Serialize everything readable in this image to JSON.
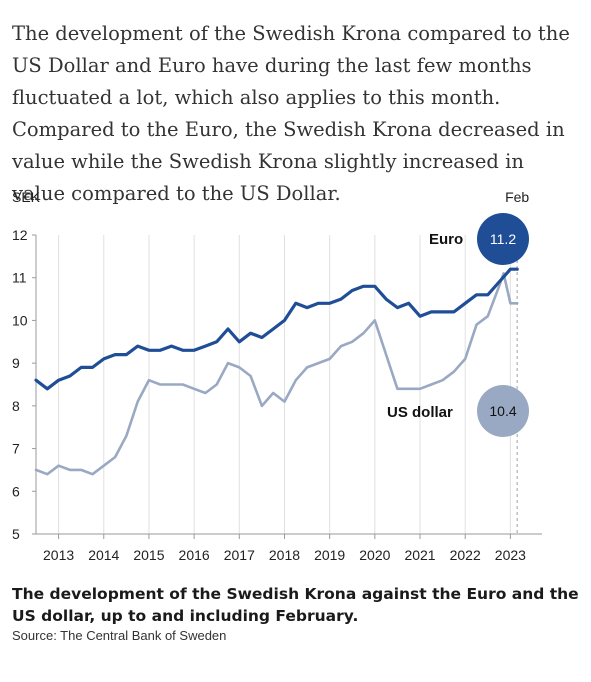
{
  "intro_text": "The development of the Swedish Krona compared to the US Dollar and Euro have during the last few months fluctuated a lot, which also applies to this month. Compared to the Euro, the Swedish Krona decreased in value while the Swedish Krona slightly increased in value compared to the US Dollar.",
  "caption": {
    "title": "The development of the Swedish Krona against the Euro and the US dollar, up to and including February.",
    "source": "Source: The Central Bank of Sweden"
  },
  "chart_data": {
    "type": "line",
    "ylabel": "SEK",
    "ylim": [
      5,
      12
    ],
    "yticks": [
      5,
      6,
      7,
      8,
      9,
      10,
      11,
      12
    ],
    "xlim": [
      2012.5,
      2023.7
    ],
    "xticks": [
      2013,
      2014,
      2015,
      2016,
      2017,
      2018,
      2019,
      2020,
      2021,
      2022,
      2023
    ],
    "grid": "vertical",
    "marker_label": "Feb",
    "marker_x": 2023.15,
    "series": [
      {
        "name": "Euro",
        "color": "#1f4e96",
        "end_value": "11.2",
        "x": [
          2012.5,
          2012.75,
          2013.0,
          2013.25,
          2013.5,
          2013.75,
          2014.0,
          2014.25,
          2014.5,
          2014.75,
          2015.0,
          2015.25,
          2015.5,
          2015.75,
          2016.0,
          2016.25,
          2016.5,
          2016.75,
          2017.0,
          2017.25,
          2017.5,
          2017.75,
          2018.0,
          2018.25,
          2018.5,
          2018.75,
          2019.0,
          2019.25,
          2019.5,
          2019.75,
          2020.0,
          2020.25,
          2020.5,
          2020.75,
          2021.0,
          2021.25,
          2021.5,
          2021.75,
          2022.0,
          2022.25,
          2022.5,
          2022.75,
          2023.0,
          2023.15
        ],
        "values": [
          8.6,
          8.4,
          8.6,
          8.7,
          8.9,
          8.9,
          9.1,
          9.2,
          9.2,
          9.4,
          9.3,
          9.3,
          9.4,
          9.3,
          9.3,
          9.4,
          9.5,
          9.8,
          9.5,
          9.7,
          9.6,
          9.8,
          10.0,
          10.4,
          10.3,
          10.4,
          10.4,
          10.5,
          10.7,
          10.8,
          10.8,
          10.5,
          10.3,
          10.4,
          10.1,
          10.2,
          10.2,
          10.2,
          10.4,
          10.6,
          10.6,
          10.9,
          11.2,
          11.2
        ]
      },
      {
        "name": "US dollar",
        "color": "#9aa9c3",
        "end_value": "10.4",
        "x": [
          2012.5,
          2012.75,
          2013.0,
          2013.25,
          2013.5,
          2013.75,
          2014.0,
          2014.25,
          2014.5,
          2014.75,
          2015.0,
          2015.25,
          2015.5,
          2015.75,
          2016.0,
          2016.25,
          2016.5,
          2016.75,
          2017.0,
          2017.25,
          2017.5,
          2017.75,
          2018.0,
          2018.25,
          2018.5,
          2018.75,
          2019.0,
          2019.25,
          2019.5,
          2019.75,
          2020.0,
          2020.25,
          2020.5,
          2020.75,
          2021.0,
          2021.25,
          2021.5,
          2021.75,
          2022.0,
          2022.25,
          2022.5,
          2022.75,
          2022.85,
          2023.0,
          2023.15
        ],
        "values": [
          6.5,
          6.4,
          6.6,
          6.5,
          6.5,
          6.4,
          6.6,
          6.8,
          7.3,
          8.1,
          8.6,
          8.5,
          8.5,
          8.5,
          8.4,
          8.3,
          8.5,
          9.0,
          8.9,
          8.7,
          8.0,
          8.3,
          8.1,
          8.6,
          8.9,
          9.0,
          9.1,
          9.4,
          9.5,
          9.7,
          10.0,
          9.2,
          8.4,
          8.4,
          8.4,
          8.5,
          8.6,
          8.8,
          9.1,
          9.9,
          10.1,
          10.8,
          11.1,
          10.4,
          10.4
        ]
      }
    ]
  }
}
